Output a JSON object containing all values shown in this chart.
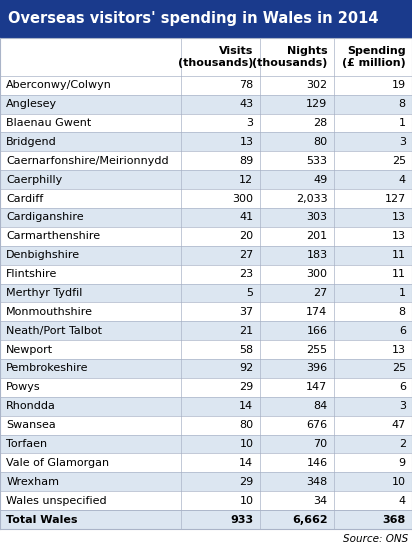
{
  "title": "Overseas visitors' spending in Wales in 2014",
  "rows": [
    [
      "Aberconwy/Colwyn",
      "78",
      "302",
      "19"
    ],
    [
      "Anglesey",
      "43",
      "129",
      "8"
    ],
    [
      "Blaenau Gwent",
      "3",
      "28",
      "1"
    ],
    [
      "Bridgend",
      "13",
      "80",
      "3"
    ],
    [
      "Caernarfonshire/Meirionnydd",
      "89",
      "533",
      "25"
    ],
    [
      "Caerphilly",
      "12",
      "49",
      "4"
    ],
    [
      "Cardiff",
      "300",
      "2,033",
      "127"
    ],
    [
      "Cardiganshire",
      "41",
      "303",
      "13"
    ],
    [
      "Carmarthenshire",
      "20",
      "201",
      "13"
    ],
    [
      "Denbighshire",
      "27",
      "183",
      "11"
    ],
    [
      "Flintshire",
      "23",
      "300",
      "11"
    ],
    [
      "Merthyr Tydfil",
      "5",
      "27",
      "1"
    ],
    [
      "Monmouthshire",
      "37",
      "174",
      "8"
    ],
    [
      "Neath/Port Talbot",
      "21",
      "166",
      "6"
    ],
    [
      "Newport",
      "58",
      "255",
      "13"
    ],
    [
      "Pembrokeshire",
      "92",
      "396",
      "25"
    ],
    [
      "Powys",
      "29",
      "147",
      "6"
    ],
    [
      "Rhondda",
      "14",
      "84",
      "3"
    ],
    [
      "Swansea",
      "80",
      "676",
      "47"
    ],
    [
      "Torfaen",
      "10",
      "70",
      "2"
    ],
    [
      "Vale of Glamorgan",
      "14",
      "146",
      "9"
    ],
    [
      "Wrexham",
      "29",
      "348",
      "10"
    ],
    [
      "Wales unspecified",
      "10",
      "34",
      "4"
    ]
  ],
  "total_row": [
    "Total Wales",
    "933",
    "6,662",
    "368"
  ],
  "source": "Source: ONS",
  "title_bg": "#1a3a8c",
  "title_color": "#ffffff",
  "header_bg": "#ffffff",
  "odd_row_bg": "#ffffff",
  "even_row_bg": "#dce6f1",
  "total_row_bg": "#dce6f1",
  "grid_color": "#aab4c8",
  "text_color": "#000000",
  "title_fontsize": 10.5,
  "header_fontsize": 8,
  "data_fontsize": 8,
  "source_fontsize": 7.5,
  "col_splits": [
    0.0,
    0.44,
    0.63,
    0.81,
    1.0
  ]
}
